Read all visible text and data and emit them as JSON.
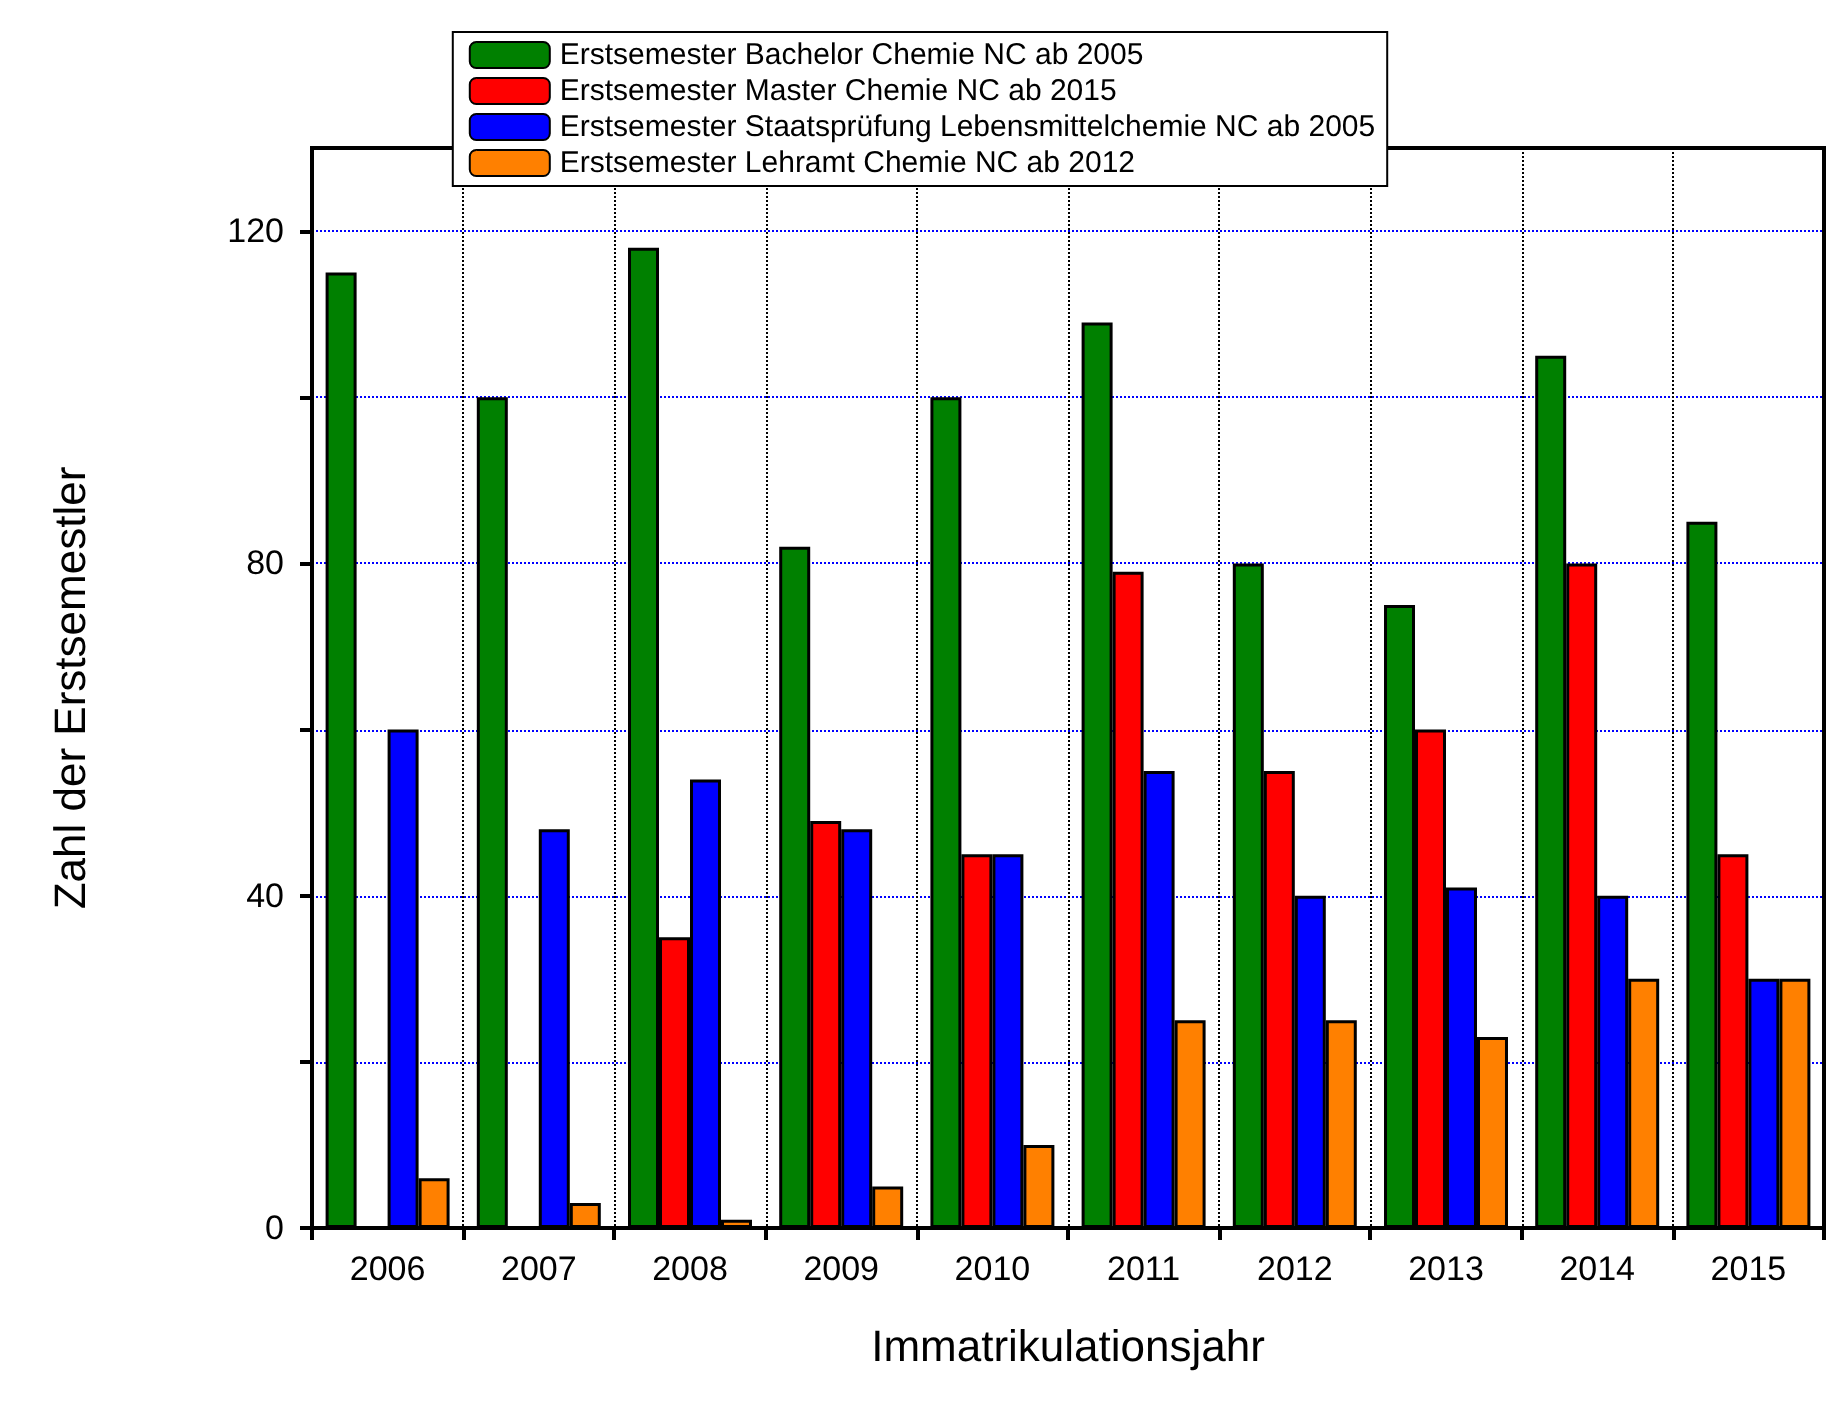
{
  "chart_data": {
    "type": "bar",
    "xlabel": "Immatrikulationsjahr",
    "ylabel": "Zahl der Erstsemestler",
    "categories": [
      "2006",
      "2007",
      "2008",
      "2009",
      "2010",
      "2011",
      "2012",
      "2013",
      "2014",
      "2015"
    ],
    "series": [
      {
        "name": "Erstsemester Bachelor Chemie NC ab 2005",
        "color": "#008000",
        "values": [
          115,
          100,
          118,
          82,
          100,
          109,
          80,
          75,
          105,
          85
        ]
      },
      {
        "name": "Erstsemester Master Chemie NC ab 2015",
        "color": "#ff0000",
        "values": [
          null,
          null,
          35,
          49,
          45,
          79,
          55,
          60,
          80,
          45
        ]
      },
      {
        "name": "Erstsemester Staatsprüfung Lebensmittelchemie NC ab 2005",
        "color": "#0000ff",
        "values": [
          60,
          48,
          54,
          48,
          45,
          55,
          40,
          41,
          40,
          30
        ]
      },
      {
        "name": "Erstsemester Lehramt Chemie NC ab 2012",
        "color": "#ff8000",
        "values": [
          6,
          3,
          1,
          5,
          10,
          25,
          25,
          23,
          30,
          30
        ]
      }
    ],
    "ylim": [
      0,
      130
    ],
    "yticks": [
      0,
      {
        "value": 20,
        "label": null
      },
      40,
      {
        "value": 60,
        "label": null
      },
      80,
      {
        "value": 100,
        "label": null
      },
      120
    ],
    "grid": true,
    "legend": "top"
  }
}
